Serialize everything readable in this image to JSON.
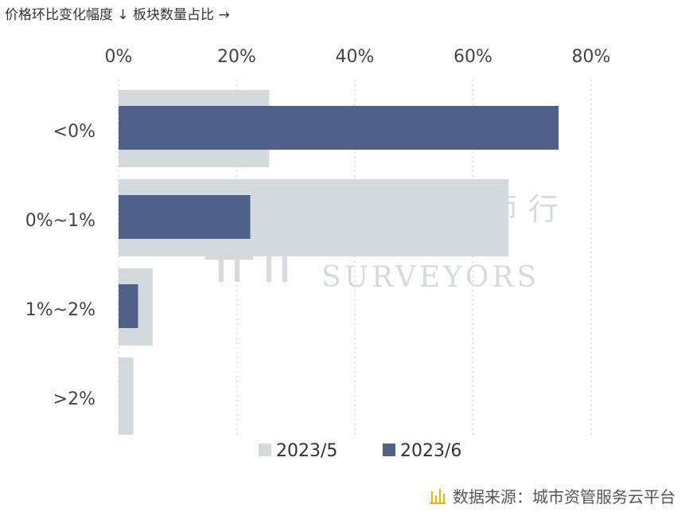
{
  "corner_label": "价格环比变化幅度 ↓  板块数量占比 →",
  "source_text": "数据来源：城市资管服务云平台",
  "watermark": {
    "cn": "城市测量师行",
    "en_line1": "URBAN",
    "en_line2": "SURVEYORS"
  },
  "colors": {
    "series_2023_5": "#d3dade",
    "series_2023_6": "#4f6189",
    "source_icon": "#f0b400"
  },
  "chart_data": {
    "type": "bar",
    "orientation": "horizontal",
    "categories": [
      "<0%",
      "0%~1%",
      "1%~2%",
      ">2%"
    ],
    "series": [
      {
        "name": "2023/5",
        "values": [
          25.5,
          66,
          5.8,
          2.5
        ]
      },
      {
        "name": "2023/6",
        "values": [
          74.5,
          22.3,
          3.3,
          0
        ]
      }
    ],
    "xlim": [
      0,
      80
    ],
    "x_ticks": [
      "0%",
      "20%",
      "40%",
      "60%",
      "80%"
    ],
    "x_tick_values": [
      0,
      20,
      40,
      60,
      80
    ],
    "x_axis_position": "top",
    "grid": "vertical-dotted",
    "legend_position": "bottom"
  }
}
